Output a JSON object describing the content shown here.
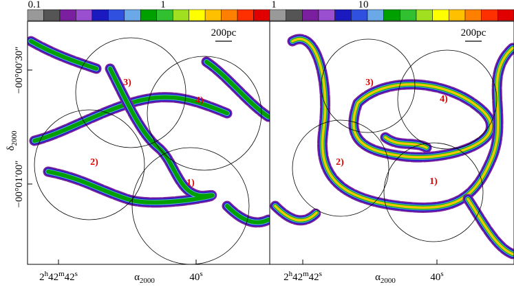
{
  "colorbars": [
    {
      "labels": [
        "0.1",
        "1"
      ]
    },
    {
      "labels": [
        "1",
        "10"
      ]
    }
  ],
  "axes": {
    "y_label": {
      "symbol": "δ",
      "sub": "2000"
    },
    "y_ticks": [
      "−00°00′30″",
      "−00°01′00″"
    ]
  },
  "panels": [
    {
      "scale_bar": "200pc",
      "regions": [
        "1)",
        "2)",
        "3)",
        "4)"
      ],
      "x_label": {
        "symbol": "α",
        "sub": "2000"
      },
      "x_ticks": [
        [
          "2",
          "h",
          "42",
          "m",
          "42",
          "s"
        ],
        [
          "40",
          "s"
        ]
      ]
    },
    {
      "scale_bar": "200pc",
      "regions": [
        "1)",
        "2)",
        "3)",
        "4)"
      ],
      "x_label": {
        "symbol": "α",
        "sub": "2000"
      },
      "x_ticks": [
        [
          "2",
          "h",
          "42",
          "m",
          "42",
          "s"
        ],
        [
          "40",
          "s"
        ]
      ]
    }
  ]
}
